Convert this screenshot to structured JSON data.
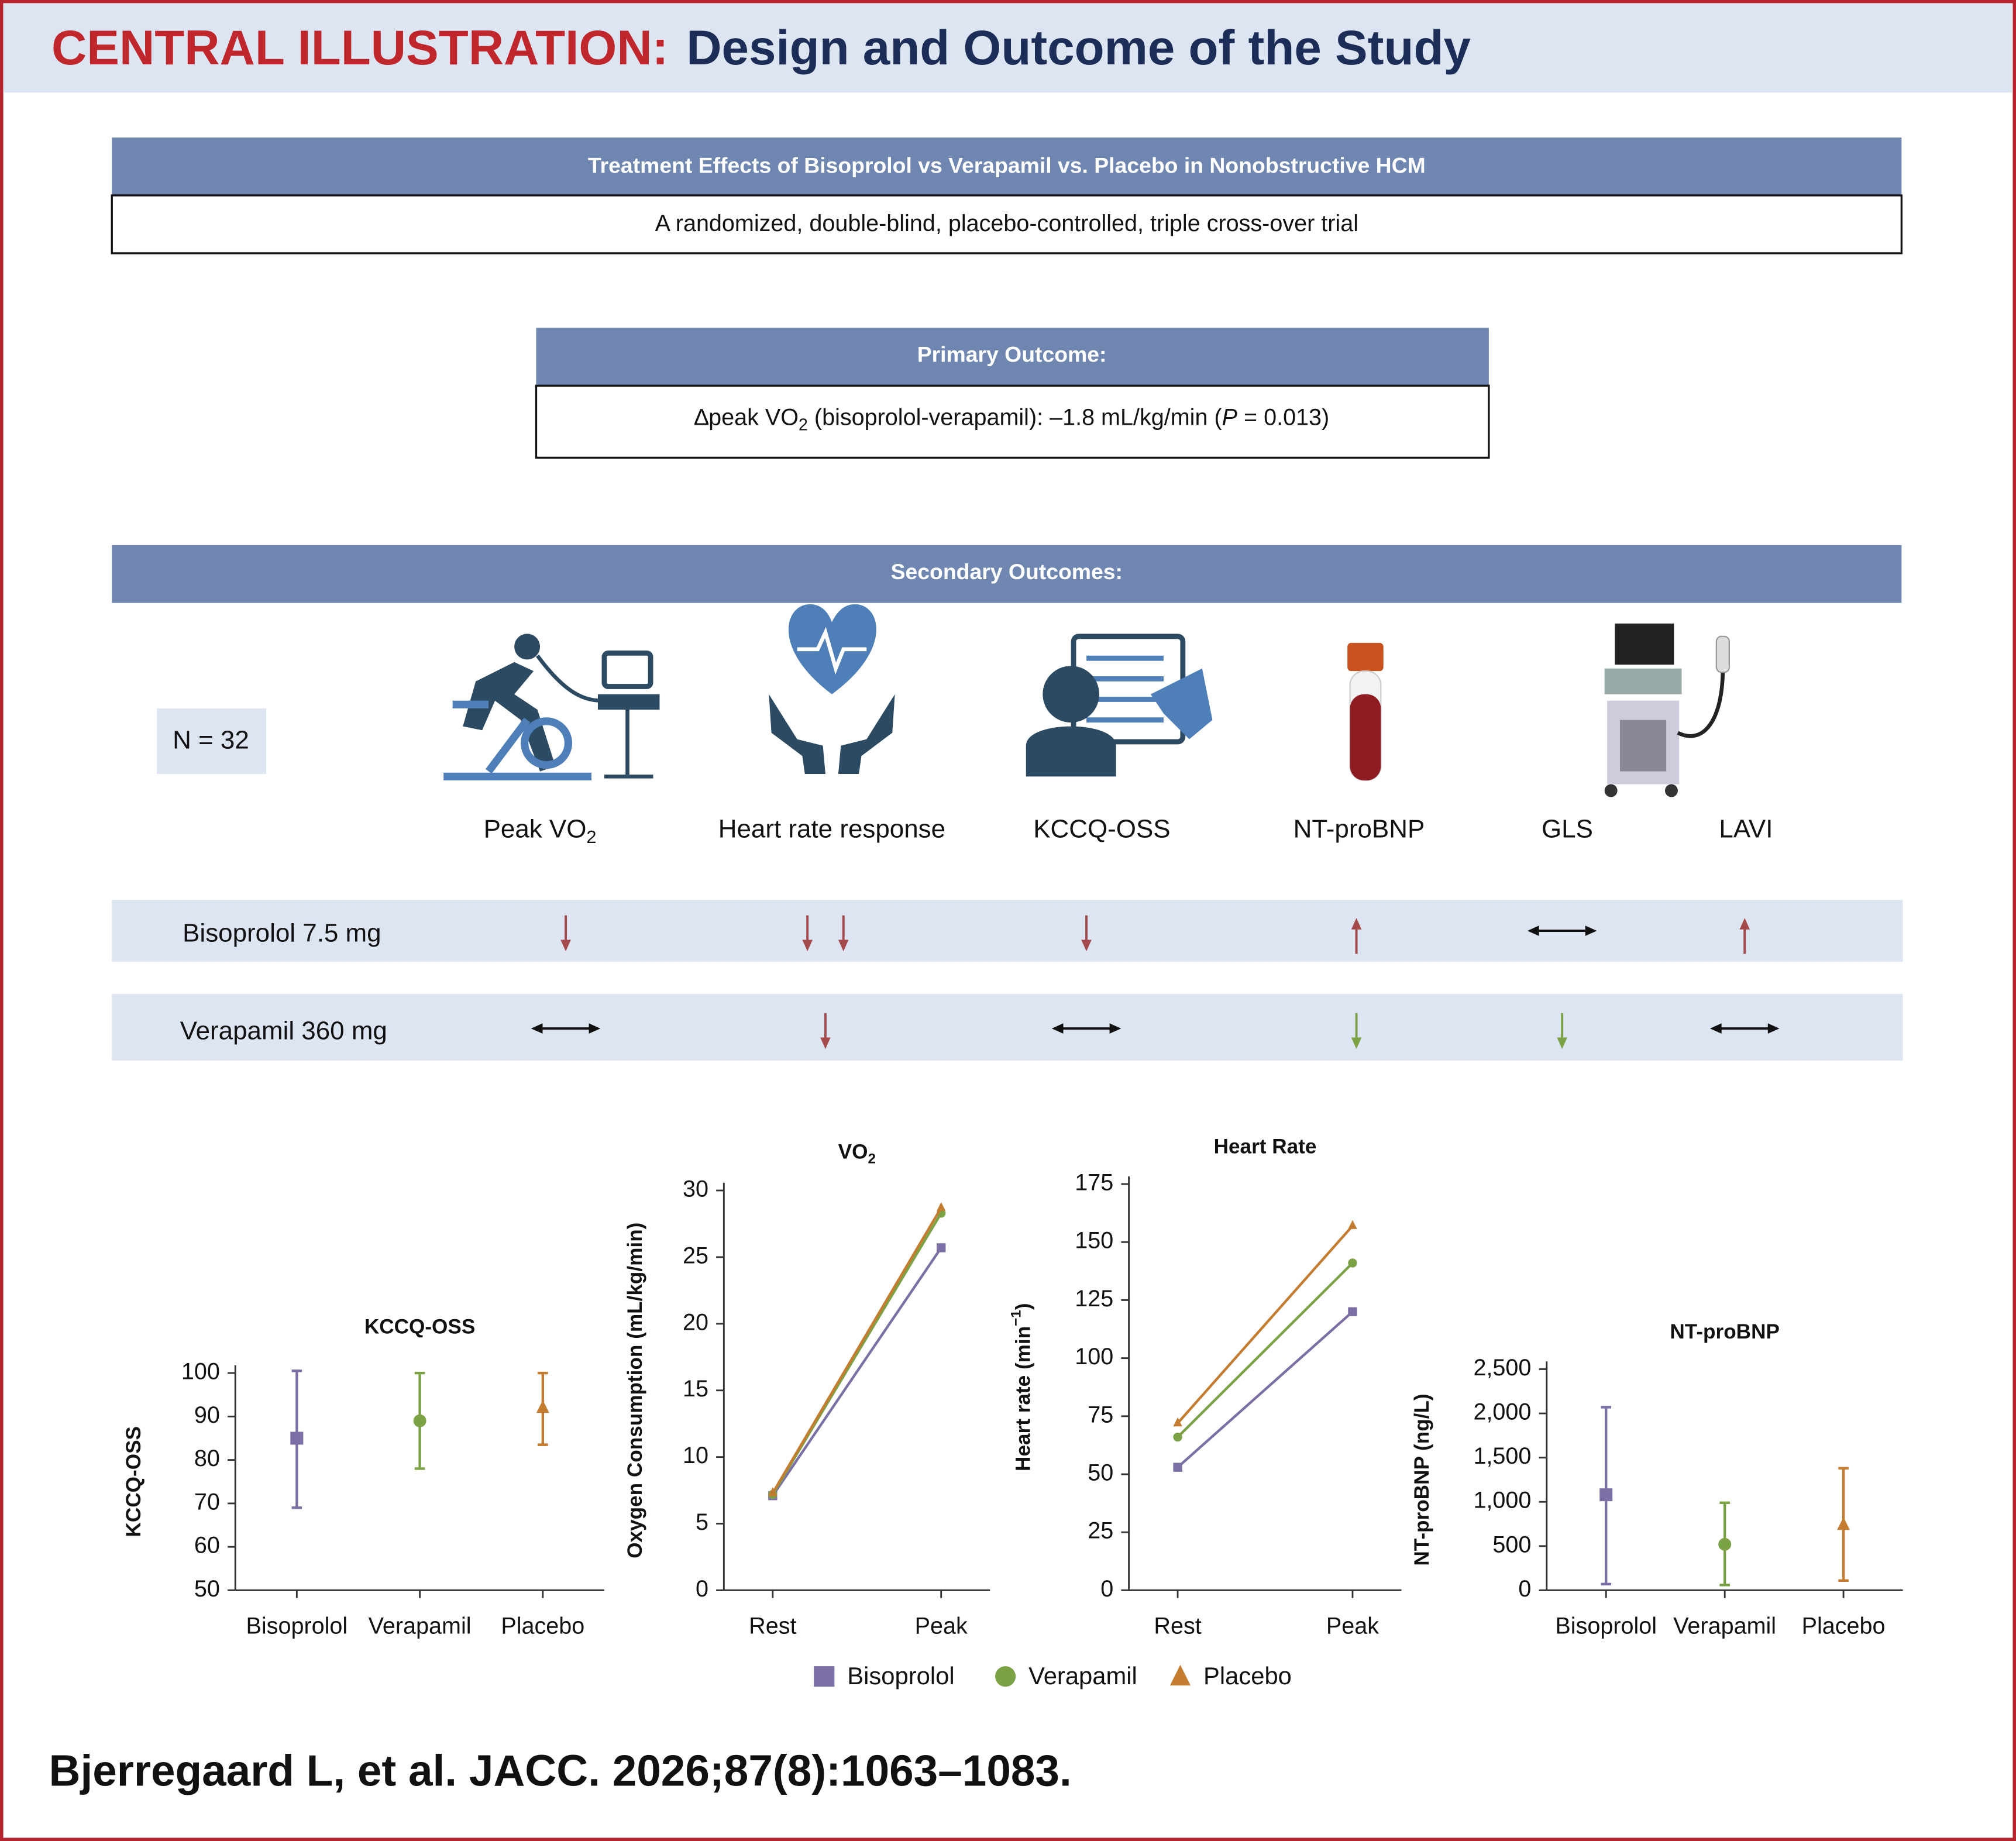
{
  "header": {
    "label": "CENTRAL ILLUSTRATION:",
    "title": "Design and Outcome of the Study"
  },
  "design": {
    "title": "Treatment Effects of Bisoprolol vs Verapamil vs. Placebo in Nonobstructive HCM",
    "text": "A randomized, double-blind, placebo-controlled, triple cross-over trial"
  },
  "primary": {
    "title": "Primary Outcome:",
    "text": [
      "∆peak VO",
      "2",
      " (bisoprolol-verapamil): –1.8 mL/kg/min (",
      "P",
      " = 0.013)"
    ]
  },
  "secondary": {
    "title": "Secondary Outcomes:",
    "n": "N = 32",
    "outcomes": [
      {
        "label": "Peak VO",
        "sub": "2"
      },
      {
        "label": "Heart rate response"
      },
      {
        "label": "KCCQ-OSS"
      },
      {
        "label": "NT-proBNP"
      },
      {
        "label": "GLS"
      },
      {
        "label": "LAVI"
      }
    ]
  },
  "effects": [
    {
      "treatment": "Bisoprolol 7.5 mg",
      "arrows": [
        {
          "dir": "down",
          "color": "#a54a4a"
        },
        {
          "dir": "down",
          "count": 2,
          "color": "#a54a4a"
        },
        {
          "dir": "down",
          "color": "#a54a4a"
        },
        {
          "dir": "up",
          "color": "#a54a4a"
        },
        {
          "dir": "both",
          "color": "#111111"
        },
        {
          "dir": "up",
          "color": "#a54a4a"
        }
      ]
    },
    {
      "treatment": "Verapamil 360 mg",
      "arrows": [
        {
          "dir": "both",
          "color": "#111111"
        },
        {
          "dir": "down",
          "color": "#a54a4a"
        },
        {
          "dir": "both",
          "color": "#111111"
        },
        {
          "dir": "down",
          "color": "#7ba244"
        },
        {
          "dir": "down",
          "color": "#7ba244"
        },
        {
          "dir": "both",
          "color": "#111111"
        }
      ]
    }
  ],
  "chart_data": [
    {
      "type": "errorbar",
      "title": "KCCQ-OSS",
      "ylabel": [
        "KCCQ-OSS"
      ],
      "categories": [
        "Bisoprolol",
        "Verapamil",
        "Placebo"
      ],
      "values": [
        85,
        89,
        92
      ],
      "lower": [
        69,
        78,
        83.5
      ],
      "upper": [
        100.5,
        100,
        100
      ],
      "colors": [
        "#7b6fa6",
        "#7ba244",
        "#c47c30"
      ],
      "markers": [
        "square",
        "circle",
        "triangle"
      ],
      "ylim": [
        50,
        100
      ],
      "yticks": [
        50,
        60,
        70,
        80,
        90,
        100
      ]
    },
    {
      "type": "line",
      "title": [
        "VO",
        "2"
      ],
      "ylabel": [
        "Oxygen Consumption (mL/kg/min)"
      ],
      "categories": [
        "Rest",
        "Peak"
      ],
      "series": [
        {
          "name": "Bisoprolol",
          "color": "#7b6fa6",
          "marker": "square",
          "values": [
            7.1,
            25.7
          ]
        },
        {
          "name": "Verapamil",
          "color": "#7ba244",
          "marker": "circle",
          "values": [
            7.2,
            28.3
          ]
        },
        {
          "name": "Placebo",
          "color": "#c47c30",
          "marker": "triangle",
          "values": [
            7.3,
            28.7
          ]
        }
      ],
      "ylim": [
        0,
        30
      ],
      "yticks": [
        0,
        5,
        10,
        15,
        20,
        25,
        30
      ]
    },
    {
      "type": "line",
      "title": [
        "Heart Rate"
      ],
      "ylabel": [
        "Heart rate (min",
        "−1",
        ")"
      ],
      "categories": [
        "Rest",
        "Peak"
      ],
      "series": [
        {
          "name": "Bisoprolol",
          "color": "#7b6fa6",
          "marker": "square",
          "values": [
            53,
            120
          ]
        },
        {
          "name": "Verapamil",
          "color": "#7ba244",
          "marker": "circle",
          "values": [
            66,
            141
          ]
        },
        {
          "name": "Placebo",
          "color": "#c47c30",
          "marker": "triangle",
          "values": [
            72,
            157
          ]
        }
      ],
      "ylim": [
        0,
        175
      ],
      "yticks": [
        0,
        25,
        50,
        75,
        100,
        125,
        150,
        175
      ]
    },
    {
      "type": "errorbar",
      "title": "NT-proBNP",
      "ylabel": [
        "NT-proBNP (ng/L)"
      ],
      "categories": [
        "Bisoprolol",
        "Verapamil",
        "Placebo"
      ],
      "values": [
        1080,
        520,
        740
      ],
      "lower": [
        70,
        60,
        110
      ],
      "upper": [
        2070,
        990,
        1380
      ],
      "colors": [
        "#7b6fa6",
        "#7ba244",
        "#c47c30"
      ],
      "markers": [
        "square",
        "circle",
        "triangle"
      ],
      "ylim": [
        0,
        2500
      ],
      "yticks": [
        0,
        500,
        {
          "value": 1000,
          "label": "1,000"
        },
        {
          "value": 1500,
          "label": "1,500"
        },
        {
          "value": 2000,
          "label": "2,000"
        },
        {
          "value": 2500,
          "label": "2,500"
        }
      ]
    }
  ],
  "citation": "Bjerregaard L, et al. JACC. 2026;87(8):1063–1083."
}
